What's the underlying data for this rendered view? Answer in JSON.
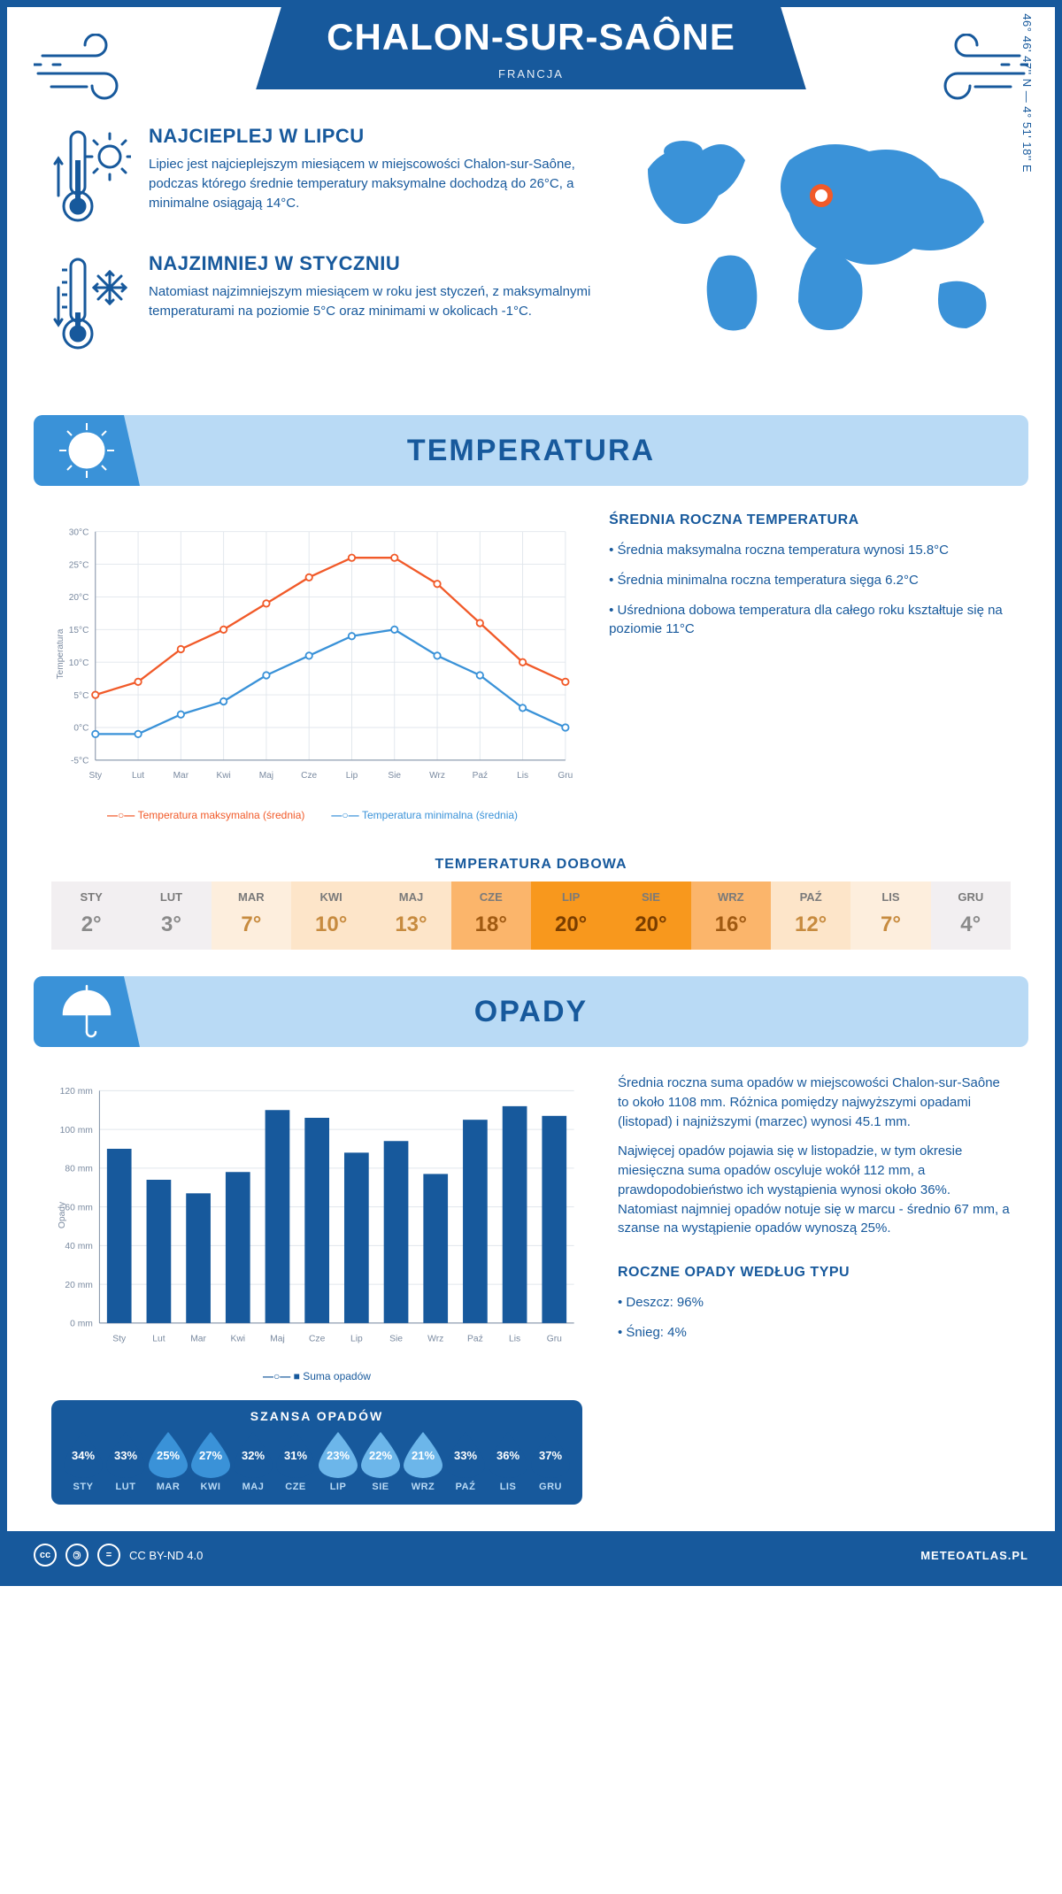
{
  "header": {
    "city": "CHALON-SUR-SAÔNE",
    "country": "FRANCJA",
    "coords": "46° 46' 47'' N — 4° 51' 18'' E"
  },
  "palette": {
    "primary": "#17599c",
    "light_band": "#b9daf5",
    "mid_blue": "#3a92d8",
    "orange": "#f15a29",
    "line_blue": "#3a92d8",
    "grid": "#e0e6ec"
  },
  "facts": {
    "hot": {
      "title": "NAJCIEPLEJ W LIPCU",
      "text": "Lipiec jest najcieplejszym miesiącem w miejscowości Chalon-sur-Saône, podczas którego średnie temperatury maksymalne dochodzą do 26°C, a minimalne osiągają 14°C."
    },
    "cold": {
      "title": "NAJZIMNIEJ W STYCZNIU",
      "text": "Natomiast najzimniejszym miesiącem w roku jest styczeń, z maksymalnymi temperaturami na poziomie 5°C oraz minimami w okolicach -1°C."
    }
  },
  "months_short": [
    "Sty",
    "Lut",
    "Mar",
    "Kwi",
    "Maj",
    "Cze",
    "Lip",
    "Sie",
    "Wrz",
    "Paź",
    "Lis",
    "Gru"
  ],
  "months_upper": [
    "STY",
    "LUT",
    "MAR",
    "KWI",
    "MAJ",
    "CZE",
    "LIP",
    "SIE",
    "WRZ",
    "PAŹ",
    "LIS",
    "GRU"
  ],
  "temperature": {
    "section_title": "TEMPERATURA",
    "chart": {
      "type": "line",
      "ylabel": "Temperatura",
      "ylim": [
        -5,
        30
      ],
      "ytick_step": 5,
      "ytick_labels": [
        "-5°C",
        "0°C",
        "5°C",
        "10°C",
        "15°C",
        "20°C",
        "25°C",
        "30°C"
      ],
      "series": [
        {
          "name": "Temperatura maksymalna (średnia)",
          "color": "#f15a29",
          "values": [
            5,
            7,
            12,
            15,
            19,
            23,
            26,
            26,
            22,
            16,
            10,
            7
          ]
        },
        {
          "name": "Temperatura minimalna (średnia)",
          "color": "#3a92d8",
          "values": [
            -1,
            -1,
            2,
            4,
            8,
            11,
            14,
            15,
            11,
            8,
            3,
            0
          ]
        }
      ],
      "grid_color": "#e0e6ec",
      "label_fontsize": 11
    },
    "side": {
      "title": "ŚREDNIA ROCZNA TEMPERATURA",
      "bullets": [
        "Średnia maksymalna roczna temperatura wynosi 15.8°C",
        "Średnia minimalna roczna temperatura sięga 6.2°C",
        "Uśredniona dobowa temperatura dla całego roku kształtuje się na poziomie 11°C"
      ]
    },
    "daily": {
      "title": "TEMPERATURA DOBOWA",
      "values": [
        2,
        3,
        7,
        10,
        13,
        18,
        20,
        20,
        16,
        12,
        7,
        4
      ],
      "cell_bg": [
        "#f2eff1",
        "#f2eff1",
        "#fdeedd",
        "#fde5c9",
        "#fde5c9",
        "#fbb56b",
        "#f8981d",
        "#f8981d",
        "#fbb56b",
        "#fde5c9",
        "#fdeedd",
        "#f2eff1"
      ],
      "cell_fg": [
        "#8a8a8a",
        "#8a8a8a",
        "#c78b3f",
        "#c78b3f",
        "#c78b3f",
        "#a05a12",
        "#7a3e00",
        "#7a3e00",
        "#a05a12",
        "#c78b3f",
        "#c78b3f",
        "#8a8a8a"
      ]
    }
  },
  "precip": {
    "section_title": "OPADY",
    "chart": {
      "type": "bar",
      "ylabel": "Opady",
      "ylim": [
        0,
        120
      ],
      "ytick_step": 20,
      "ytick_labels": [
        "0 mm",
        "20 mm",
        "40 mm",
        "60 mm",
        "80 mm",
        "100 mm",
        "120 mm"
      ],
      "values": [
        90,
        74,
        67,
        78,
        110,
        106,
        88,
        94,
        77,
        105,
        112,
        107
      ],
      "bar_color": "#17599c",
      "grid_color": "#e0e6ec",
      "bar_width": 0.62,
      "legend": "Suma opadów"
    },
    "side": {
      "p1": "Średnia roczna suma opadów w miejscowości Chalon-sur-Saône to około 1108 mm. Różnica pomiędzy najwyższymi opadami (listopad) i najniższymi (marzec) wynosi 45.1 mm.",
      "p2": "Najwięcej opadów pojawia się w listopadzie, w tym okresie miesięczna suma opadów oscyluje wokół 112 mm, a prawdopodobieństwo ich wystąpienia wynosi około 36%. Natomiast najmniej opadów notuje się w marcu - średnio 67 mm, a szanse na wystąpienie opadów wynoszą 25%.",
      "type_title": "ROCZNE OPADY WEDŁUG TYPU",
      "types": [
        "Deszcz: 96%",
        "Śnieg: 4%"
      ]
    },
    "chance": {
      "title": "SZANSA OPADÓW",
      "values": [
        34,
        33,
        25,
        27,
        32,
        31,
        23,
        22,
        21,
        33,
        36,
        37
      ],
      "drop_colors": [
        "#17599c",
        "#17599c",
        "#3a92d8",
        "#3a92d8",
        "#17599c",
        "#17599c",
        "#6cb6ea",
        "#6cb6ea",
        "#6cb6ea",
        "#17599c",
        "#17599c",
        "#17599c"
      ]
    }
  },
  "footer": {
    "license": "CC BY-ND 4.0",
    "site": "METEOATLAS.PL"
  }
}
